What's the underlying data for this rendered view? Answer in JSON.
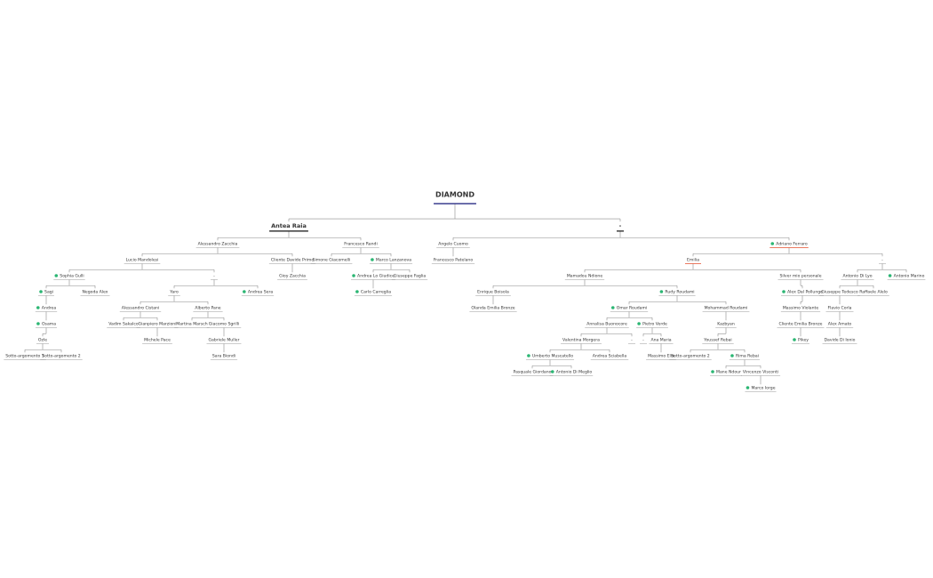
{
  "dot_color": "#2bb673",
  "nodes": [
    {
      "label": "DIAMOND",
      "parent": null
    },
    {
      "label": "Antea Raia",
      "parent": 0
    },
    {
      "label": "-",
      "parent": 0
    },
    {
      "label": "Alessandro Zacchia",
      "parent": 1
    },
    {
      "label": "Francesco Randi",
      "parent": 1
    },
    {
      "label": "Lucio Mandolesi",
      "parent": 3
    },
    {
      "label": "Cliente Davide Primo",
      "parent": 3
    },
    {
      "label": "Gioy Zacchia",
      "parent": 6
    },
    {
      "label": "Sophia Gulli",
      "parent": 5,
      "dot": true
    },
    {
      "label": "-",
      "parent": 5
    },
    {
      "label": "Sagi",
      "parent": 8,
      "dot": true
    },
    {
      "label": "Negoda Alex",
      "parent": 8
    },
    {
      "label": "Andrea",
      "parent": 10,
      "dot": true
    },
    {
      "label": "Osama",
      "parent": 12,
      "dot": true
    },
    {
      "label": "Ozle",
      "parent": 13
    },
    {
      "label": "Sotto-argomento 1",
      "parent": 14
    },
    {
      "label": "Sotto-argomento 2",
      "parent": 14
    },
    {
      "label": "Yaro",
      "parent": 9
    },
    {
      "label": "Andrea Sera",
      "parent": 9,
      "dot": true
    },
    {
      "label": "Alessandro Cistani",
      "parent": 17
    },
    {
      "label": "Alberto Pane",
      "parent": 17
    },
    {
      "label": "Vadim Sakalco",
      "parent": 19
    },
    {
      "label": "Gianpiero Marzioni",
      "parent": 19
    },
    {
      "label": "Michele Pace",
      "parent": 22
    },
    {
      "label": "Martina Marsch",
      "parent": 20
    },
    {
      "label": "Giacomo Sgrilli",
      "parent": 20
    },
    {
      "label": "Gabriele Muller",
      "parent": 25
    },
    {
      "label": "Sara Biondi",
      "parent": 26
    },
    {
      "label": "Simone Giacomelli",
      "parent": 4
    },
    {
      "label": "Marco Lanzanova",
      "parent": 4,
      "dot": true
    },
    {
      "label": "Andrea Lo Giudice",
      "parent": 29,
      "dot": true
    },
    {
      "label": "Giuseppe Faglia",
      "parent": 29
    },
    {
      "label": "Carlo Carreglia",
      "parent": 30,
      "dot": true
    },
    {
      "label": "Angelo Cuomo",
      "parent": 2
    },
    {
      "label": "Adriano Ferraro",
      "parent": 2,
      "dot": true,
      "underline": "#e8674a"
    },
    {
      "label": "Francesco Patelano",
      "parent": 33
    },
    {
      "label": "Emilia",
      "parent": 34,
      "underline": "#e8674a"
    },
    {
      "label": "-",
      "parent": 34
    },
    {
      "label": "Mamadou Ndione",
      "parent": 36
    },
    {
      "label": "Silver mio personale",
      "parent": 36
    },
    {
      "label": "Enrique Boisola",
      "parent": 38
    },
    {
      "label": "Rudy Roudami",
      "parent": 38,
      "dot": true
    },
    {
      "label": "Olanda Emilia Bronze",
      "parent": 40
    },
    {
      "label": "Omar Roudami",
      "parent": 41,
      "dot": true
    },
    {
      "label": "Mohammad Roudami",
      "parent": 41
    },
    {
      "label": "Annalisa Buonocore",
      "parent": 43
    },
    {
      "label": "Pietro Verde",
      "parent": 43,
      "dot": true
    },
    {
      "label": "Valentina Morgera",
      "parent": 45
    },
    {
      "label": "-",
      "parent": 45
    },
    {
      "label": "Umberto Muscatello",
      "parent": 47,
      "dot": true
    },
    {
      "label": "Andrea Sciabella",
      "parent": 47
    },
    {
      "label": "Pasquale Giordano",
      "parent": 49
    },
    {
      "label": "Antonio Di Meglio",
      "parent": 49,
      "dot": true
    },
    {
      "label": "-",
      "parent": 46
    },
    {
      "label": "Ana Maria",
      "parent": 46
    },
    {
      "label": "Massimo Elia",
      "parent": 54
    },
    {
      "label": "Kazbyan",
      "parent": 44
    },
    {
      "label": "Youssef Rebai",
      "parent": 56
    },
    {
      "label": "Sotto-argomento 2",
      "parent": 57
    },
    {
      "label": "Rima Rebai",
      "parent": 57,
      "dot": true
    },
    {
      "label": "Mane Ndour",
      "parent": 59,
      "dot": true
    },
    {
      "label": "Vincenzo Visconti",
      "parent": 59
    },
    {
      "label": "Marco Iorge",
      "parent": 61,
      "dot": true
    },
    {
      "label": "Alex Dal Pollungo",
      "parent": 39,
      "dot": true
    },
    {
      "label": "Massimo Violante",
      "parent": 63
    },
    {
      "label": "Cliente Emilia Bronze",
      "parent": 64
    },
    {
      "label": "Pikey",
      "parent": 65,
      "dot": true
    },
    {
      "label": "Antonio Di Lyo",
      "parent": 37
    },
    {
      "label": "Antonio Marino",
      "parent": 37,
      "dot": true
    },
    {
      "label": "Giuseppe Tedesco",
      "parent": 67
    },
    {
      "label": "Raffaele Alelo",
      "parent": 67
    },
    {
      "label": "Flavio Corla",
      "parent": 69
    },
    {
      "label": "Alex Amato",
      "parent": 71
    },
    {
      "label": "Davide Di Ionio",
      "parent": 72
    }
  ]
}
